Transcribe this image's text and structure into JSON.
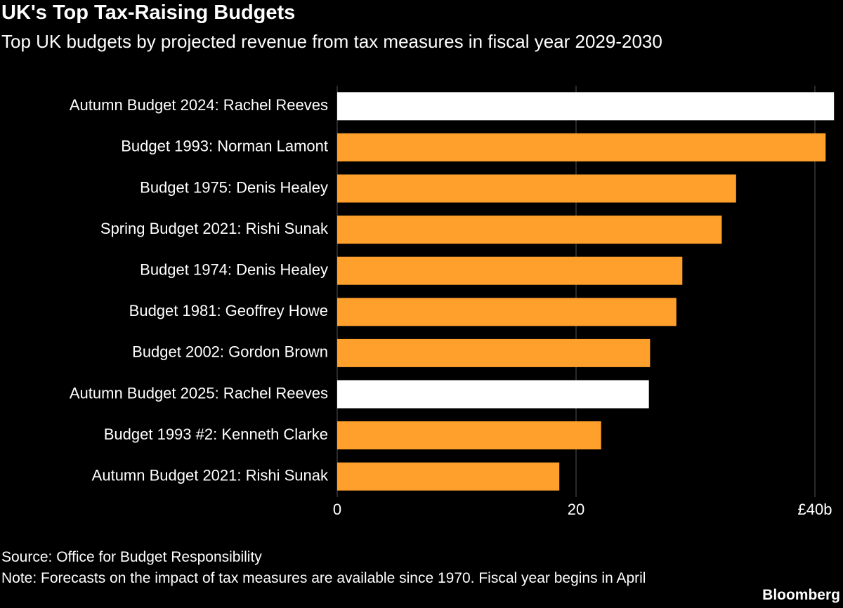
{
  "chart_data": {
    "type": "bar",
    "orientation": "horizontal",
    "title": "UK's Top Tax-Raising Budgets",
    "subtitle": "Top UK budgets by projected revenue from tax measures in fiscal year 2029-2030",
    "categories": [
      "Autumn Budget 2024: Rachel Reeves",
      "Budget 1993: Norman Lamont",
      "Budget 1975: Denis Healey",
      "Spring Budget 2021: Rishi Sunak",
      "Budget 1974: Denis Healey",
      "Budget 1981: Geoffrey Howe",
      "Budget 2002: Gordon Brown",
      "Autumn Budget 2025: Rachel Reeves",
      "Budget 1993 #2: Kenneth Clarke",
      "Autumn Budget 2021: Rishi Sunak"
    ],
    "values": [
      41.6,
      40.9,
      33.4,
      32.2,
      28.9,
      28.4,
      26.2,
      26.1,
      22.1,
      18.6
    ],
    "colors": [
      "#ffffff",
      "#ffa02c",
      "#ffa02c",
      "#ffa02c",
      "#ffa02c",
      "#ffa02c",
      "#ffa02c",
      "#ffffff",
      "#ffa02c",
      "#ffa02c"
    ],
    "xlim": [
      0,
      42
    ],
    "xticks": [
      0,
      20,
      {
        "value": 40,
        "label": "£40b"
      }
    ],
    "grid": true,
    "source": "Source: Office for Budget Responsibility",
    "note": "Note: Forecasts on the impact of tax measures are available since 1970. Fiscal year begins in April",
    "credit": "Bloomberg"
  }
}
